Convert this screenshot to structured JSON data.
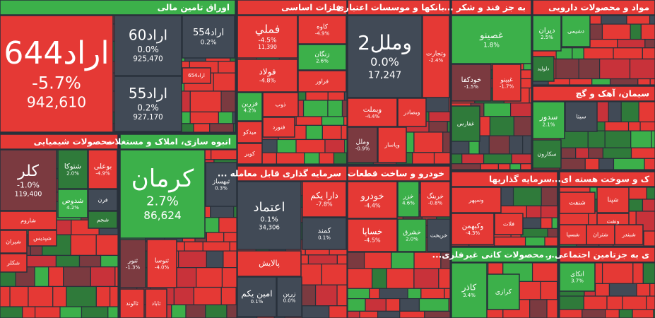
{
  "sectors": [
    {
      "title": "اوراق تامین مالی",
      "stocks": [
        {
          "name": "اراد644",
          "change": "-5.7%",
          "volume": "942,610"
        },
        {
          "name": "اراد60",
          "change": "0.0%",
          "volume": "925,470"
        },
        {
          "name": "اراد554",
          "change": "0.2%"
        },
        {
          "name": "اراد654"
        },
        {
          "name": "اراد55",
          "change": "0.2%",
          "volume": "927,170"
        }
      ]
    },
    {
      "title": "محصولات شیمیایی",
      "stocks": [
        {
          "name": "کلر",
          "change": "-1.0%",
          "volume": "119,400"
        },
        {
          "name": "شتوکا",
          "change": "2.0%"
        },
        {
          "name": "بوعلی",
          "change": "-4.9%"
        },
        {
          "name": "شدوص",
          "change": "4.2%"
        },
        {
          "name": "فرن"
        },
        {
          "name": "شجم"
        },
        {
          "name": "شاروم"
        },
        {
          "name": "شپدیس"
        },
        {
          "name": "شیران"
        },
        {
          "name": "شکلر"
        }
      ]
    },
    {
      "title": "انبوه سازی، املاک و مستغلات",
      "stocks": [
        {
          "name": "کرمان",
          "change": "2.7%",
          "volume": "86,624"
        },
        {
          "name": "ثبهساز",
          "change": "0.3%"
        },
        {
          "name": "ثنور",
          "change": "-1.3%"
        },
        {
          "name": "ثنوسا",
          "change": "-4.0%"
        },
        {
          "name": "ثالوند"
        },
        {
          "name": "ثاباد"
        }
      ]
    },
    {
      "title": "فلزات اساسی",
      "stocks": [
        {
          "name": "فملي",
          "change": "-4.5%",
          "volume": "11,390"
        },
        {
          "name": "کاوه",
          "change": "-4.9%"
        },
        {
          "name": "زنگان",
          "change": "2.6%"
        },
        {
          "name": "فولاد",
          "change": "-4.8%"
        },
        {
          "name": "فراور"
        },
        {
          "name": "فزرین",
          "change": "4.2%"
        },
        {
          "name": "ذوب"
        },
        {
          "name": "فنورد"
        },
        {
          "name": "میدکو"
        },
        {
          "name": "کویر"
        }
      ]
    },
    {
      "title": "بانکها و موسسات اعتباری",
      "stocks": [
        {
          "name": "وملل2",
          "change": "0.0%",
          "volume": "17,247"
        },
        {
          "name": "وتجارت",
          "change": "-2.4%"
        },
        {
          "name": "وبملت",
          "change": "-4.4%"
        },
        {
          "name": "وبصادر"
        },
        {
          "name": "وملل",
          "change": "-0.9%"
        },
        {
          "name": "وپاسار"
        }
      ]
    },
    {
      "title": "... به جز قند و شکر",
      "stocks": [
        {
          "name": "غصينو",
          "change": "1.8%"
        },
        {
          "name": "خودکفا",
          "change": "-1.5%"
        },
        {
          "name": "غبینو",
          "change": "-1.7%"
        },
        {
          "name": "غفارس"
        }
      ]
    },
    {
      "title": "مواد و محصولات دارویی",
      "stocks": [
        {
          "name": "دیران",
          "change": "2.5%"
        },
        {
          "name": "دشیمی"
        },
        {
          "name": "دلوليد"
        }
      ]
    },
    {
      "title": "سیمان، آهک و گچ",
      "stocks": [
        {
          "name": "سدور",
          "change": "2.1%"
        },
        {
          "name": "سیتا"
        },
        {
          "name": "سکارون"
        }
      ]
    },
    {
      "title": "... سرمایه گذاری قابل معامله",
      "stocks": [
        {
          "name": "اعتماد",
          "change": "0.1%",
          "volume": "34,306"
        },
        {
          "name": "دارا یکم",
          "change": "-7.8%"
        },
        {
          "name": "کمند",
          "change": "0.1%"
        },
        {
          "name": "پالایش"
        },
        {
          "name": "امین یکم",
          "change": "0.1%"
        },
        {
          "name": "زرین",
          "change": "0.0%"
        }
      ]
    },
    {
      "title": "خودرو و ساخت قطعات",
      "stocks": [
        {
          "name": "خودرو",
          "change": "-4.4%"
        },
        {
          "name": "خزر",
          "change": "4.6%"
        },
        {
          "name": "خرینگ",
          "change": "-0.8%"
        },
        {
          "name": "خساپا",
          "change": "-4.5%"
        },
        {
          "name": "خشرق",
          "change": "2.0%"
        },
        {
          "name": "خریخت"
        }
      ]
    },
    {
      "title": "سرمایه گذاریها",
      "stocks": [
        {
          "name": "وسپهر"
        },
        {
          "name": "وکبهمن",
          "change": "-4.3%"
        },
        {
          "name": "فلات"
        }
      ]
    },
    {
      "title": "...ر محصولات کانی غیرفلزی",
      "stocks": [
        {
          "name": "کاذر",
          "change": "3.4%"
        },
        {
          "name": "کرازی"
        }
      ]
    },
    {
      "title": "...ک و سوخت هسته ای",
      "stocks": [
        {
          "name": "شپنا"
        },
        {
          "name": "شنفت"
        },
        {
          "name": "ونفت"
        },
        {
          "name": "شتران"
        },
        {
          "name": "شبندر"
        },
        {
          "name": "شسپا"
        }
      ]
    },
    {
      "title": "...ی به جزتامین اجتماعی",
      "stocks": [
        {
          "name": "اتکای",
          "change": "3.7%"
        }
      ]
    }
  ]
}
